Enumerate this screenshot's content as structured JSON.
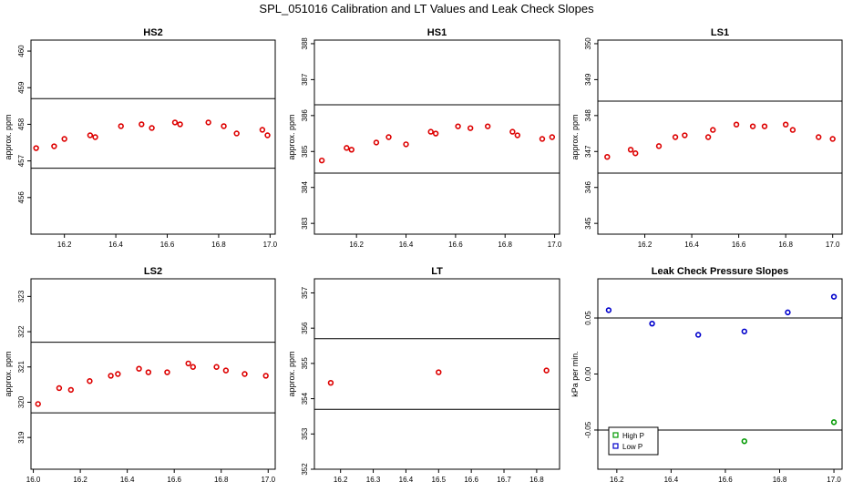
{
  "figure_title": "SPL_051016  Calibration and LT Values and Leak Check Slopes",
  "chart_data": [
    {
      "type": "scatter",
      "title": "HS2",
      "ylabel": "approx. ppm",
      "xlim": [
        16.07,
        17.02
      ],
      "ylim": [
        455.0,
        460.3
      ],
      "xticks": [
        "16.2",
        "16.4",
        "16.6",
        "16.8",
        "17.0"
      ],
      "xtick_values": [
        16.2,
        16.4,
        16.6,
        16.8,
        17.0
      ],
      "yticks": [
        "456",
        "457",
        "458",
        "459",
        "460"
      ],
      "ytick_values": [
        456,
        457,
        458,
        459,
        460
      ],
      "hlines": [
        456.8,
        458.7
      ],
      "color": "#dd0000",
      "x": [
        16.09,
        16.16,
        16.2,
        16.3,
        16.32,
        16.42,
        16.5,
        16.54,
        16.63,
        16.65,
        16.76,
        16.82,
        16.87,
        16.97,
        16.99
      ],
      "y": [
        457.35,
        457.4,
        457.6,
        457.7,
        457.65,
        457.95,
        458.0,
        457.9,
        458.05,
        458.0,
        458.05,
        457.95,
        457.75,
        457.85,
        457.7
      ]
    },
    {
      "type": "scatter",
      "title": "HS1",
      "ylabel": "approx. ppm",
      "xlim": [
        16.03,
        17.02
      ],
      "ylim": [
        382.7,
        388.1
      ],
      "xticks": [
        "16.2",
        "16.4",
        "16.6",
        "16.8",
        "17.0"
      ],
      "xtick_values": [
        16.2,
        16.4,
        16.6,
        16.8,
        17.0
      ],
      "yticks": [
        "383",
        "384",
        "385",
        "386",
        "387",
        "388"
      ],
      "ytick_values": [
        383,
        384,
        385,
        386,
        387,
        388
      ],
      "hlines": [
        384.4,
        386.3
      ],
      "color": "#dd0000",
      "x": [
        16.06,
        16.16,
        16.18,
        16.28,
        16.33,
        16.4,
        16.5,
        16.52,
        16.61,
        16.66,
        16.73,
        16.83,
        16.85,
        16.95,
        16.99
      ],
      "y": [
        384.75,
        385.1,
        385.05,
        385.25,
        385.4,
        385.2,
        385.55,
        385.5,
        385.7,
        385.65,
        385.7,
        385.55,
        385.45,
        385.35,
        385.4
      ]
    },
    {
      "type": "scatter",
      "title": "LS1",
      "ylabel": "approx. ppm",
      "xlim": [
        16.0,
        17.04
      ],
      "ylim": [
        344.7,
        350.1
      ],
      "xticks": [
        "16.2",
        "16.4",
        "16.6",
        "16.8",
        "17.0"
      ],
      "xtick_values": [
        16.2,
        16.4,
        16.6,
        16.8,
        17.0
      ],
      "yticks": [
        "345",
        "346",
        "347",
        "348",
        "349",
        "350"
      ],
      "ytick_values": [
        345,
        346,
        347,
        348,
        349,
        350
      ],
      "hlines": [
        346.4,
        348.4
      ],
      "color": "#dd0000",
      "x": [
        16.04,
        16.14,
        16.16,
        16.26,
        16.33,
        16.37,
        16.47,
        16.49,
        16.59,
        16.66,
        16.71,
        16.8,
        16.83,
        16.94,
        17.0
      ],
      "y": [
        346.85,
        347.05,
        346.95,
        347.15,
        347.4,
        347.45,
        347.4,
        347.6,
        347.75,
        347.7,
        347.7,
        347.75,
        347.6,
        347.4,
        347.35
      ]
    },
    {
      "type": "scatter",
      "title": "LS2",
      "ylabel": "approx. ppm",
      "xlim": [
        15.99,
        17.03
      ],
      "ylim": [
        318.1,
        323.5
      ],
      "xticks": [
        "16.0",
        "16.2",
        "16.4",
        "16.6",
        "16.8",
        "17.0"
      ],
      "xtick_values": [
        16.0,
        16.2,
        16.4,
        16.6,
        16.8,
        17.0
      ],
      "yticks": [
        "319",
        "320",
        "321",
        "322",
        "323"
      ],
      "ytick_values": [
        319,
        320,
        321,
        322,
        323
      ],
      "hlines": [
        319.7,
        321.7
      ],
      "color": "#dd0000",
      "x": [
        16.02,
        16.11,
        16.16,
        16.24,
        16.33,
        16.36,
        16.45,
        16.49,
        16.57,
        16.66,
        16.68,
        16.78,
        16.82,
        16.9,
        16.99
      ],
      "y": [
        319.95,
        320.4,
        320.35,
        320.6,
        320.75,
        320.8,
        320.95,
        320.85,
        320.85,
        321.1,
        321.0,
        321.0,
        320.9,
        320.8,
        320.75
      ]
    },
    {
      "type": "scatter",
      "title": "LT",
      "ylabel": "approx. ppm",
      "xlim": [
        16.12,
        16.87
      ],
      "ylim": [
        352.0,
        357.4
      ],
      "xticks": [
        "16.2",
        "16.3",
        "16.4",
        "16.5",
        "16.6",
        "16.7",
        "16.8"
      ],
      "xtick_values": [
        16.2,
        16.3,
        16.4,
        16.5,
        16.6,
        16.7,
        16.8
      ],
      "yticks": [
        "352",
        "353",
        "354",
        "355",
        "356",
        "357"
      ],
      "ytick_values": [
        352,
        353,
        354,
        355,
        356,
        357
      ],
      "hlines": [
        353.7,
        355.7
      ],
      "color": "#dd0000",
      "x": [
        16.17,
        16.5,
        16.83
      ],
      "y": [
        354.45,
        354.75,
        354.8
      ]
    },
    {
      "type": "scatter",
      "title": "Leak Check Pressure Slopes",
      "ylabel": "kPa per min.",
      "xlim": [
        16.13,
        17.03
      ],
      "ylim": [
        -0.085,
        0.085
      ],
      "xticks": [
        "16.2",
        "16.4",
        "16.6",
        "16.8",
        "17.0"
      ],
      "xtick_values": [
        16.2,
        16.4,
        16.6,
        16.8,
        17.0
      ],
      "yticks": [
        "-0.05",
        "0.00",
        "0.05"
      ],
      "ytick_values": [
        -0.05,
        0.0,
        0.05
      ],
      "hlines": [
        -0.05,
        0.05
      ],
      "legend_position": "bottom-left",
      "series": [
        {
          "name": "High P",
          "color": "#009900",
          "x": [
            16.33,
            16.67,
            17.0
          ],
          "y": [
            -0.057,
            -0.06,
            -0.043
          ]
        },
        {
          "name": "Low P",
          "color": "#0000cc",
          "x": [
            16.17,
            16.33,
            16.5,
            16.67,
            16.83,
            17.0
          ],
          "y": [
            0.057,
            0.045,
            0.035,
            0.038,
            0.055,
            0.069
          ]
        }
      ]
    }
  ]
}
